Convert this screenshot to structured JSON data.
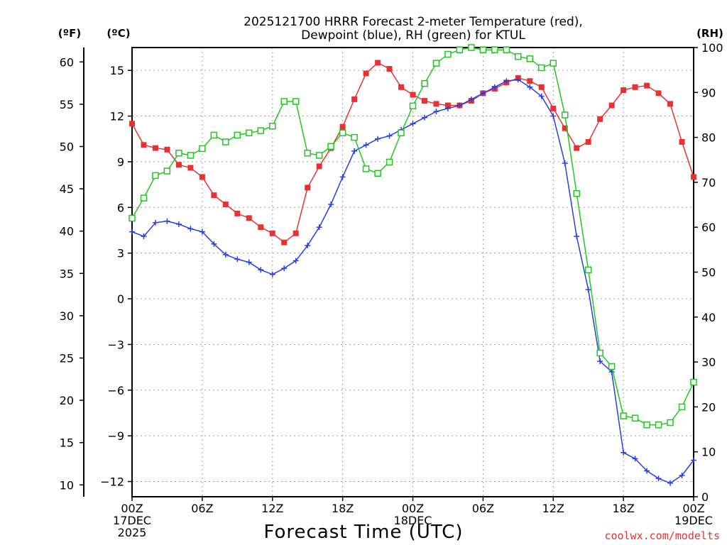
{
  "chart_data": {
    "type": "line",
    "title_line1": "2025121700 HRRR Forecast 2-meter Temperature (red),",
    "title_line2": "Dewpoint (blue), RH (green) for KTUL",
    "xlabel": "Forecast Time (UTC)",
    "left_outer_unit": "(ºF)",
    "left_inner_unit": "(ºC)",
    "right_unit": "(RH)",
    "credit": "coolwx.com/modelts",
    "x_hours_range": [
      0,
      48
    ],
    "celsius_range": [
      -13,
      16.5
    ],
    "fahrenheit_range": [
      8.6,
      61.7
    ],
    "rh_range": [
      0,
      100
    ],
    "x_ticks": [
      {
        "hour": 0,
        "lines": [
          "00Z",
          "17DEC",
          "2025"
        ]
      },
      {
        "hour": 6,
        "lines": [
          "06Z"
        ]
      },
      {
        "hour": 12,
        "lines": [
          "12Z"
        ]
      },
      {
        "hour": 18,
        "lines": [
          "18Z"
        ]
      },
      {
        "hour": 24,
        "lines": [
          "00Z",
          "18DEC"
        ]
      },
      {
        "hour": 30,
        "lines": [
          "06Z"
        ]
      },
      {
        "hour": 36,
        "lines": [
          "12Z"
        ]
      },
      {
        "hour": 42,
        "lines": [
          "18Z"
        ]
      },
      {
        "hour": 48,
        "lines": [
          "00Z",
          "19DEC"
        ]
      }
    ],
    "celsius_ticks": [
      "15",
      "12",
      "9",
      "6",
      "3",
      "0",
      "−3",
      "−6",
      "−9",
      "−12"
    ],
    "celsius_tick_values": [
      15,
      12,
      9,
      6,
      3,
      0,
      -3,
      -6,
      -9,
      -12
    ],
    "fahrenheit_ticks": [
      "60",
      "55",
      "50",
      "45",
      "40",
      "35",
      "30",
      "25",
      "20",
      "15",
      "10"
    ],
    "fahrenheit_tick_values": [
      60,
      55,
      50,
      45,
      40,
      35,
      30,
      25,
      20,
      15,
      10
    ],
    "rh_ticks": [
      "100",
      "90",
      "80",
      "70",
      "60",
      "50",
      "40",
      "30",
      "20",
      "10",
      "0"
    ],
    "rh_tick_values": [
      100,
      90,
      80,
      70,
      60,
      50,
      40,
      30,
      20,
      10,
      0
    ],
    "series": [
      {
        "name": "2-meter Temperature",
        "axis": "celsius",
        "color": "#e83232",
        "marker": "filled-square",
        "hours": [
          0,
          1,
          2,
          3,
          4,
          5,
          6,
          7,
          8,
          9,
          10,
          11,
          12,
          13,
          14,
          15,
          16,
          17,
          18,
          19,
          20,
          21,
          22,
          23,
          24,
          25,
          26,
          27,
          28,
          29,
          30,
          31,
          32,
          33,
          34,
          35,
          36,
          37,
          38,
          39,
          40,
          41,
          42,
          43,
          44,
          45,
          46,
          47,
          48
        ],
        "values": [
          11.5,
          10.1,
          9.9,
          9.8,
          8.8,
          8.6,
          8.0,
          6.8,
          6.2,
          5.6,
          5.3,
          4.7,
          4.3,
          3.7,
          4.3,
          7.3,
          8.7,
          9.9,
          11.3,
          13.1,
          14.8,
          15.5,
          15.1,
          13.9,
          13.4,
          13.0,
          12.8,
          12.7,
          12.7,
          13.0,
          13.5,
          13.8,
          14.2,
          14.5,
          14.3,
          13.9,
          12.5,
          11.2,
          9.9,
          10.3,
          11.8,
          12.7,
          13.7,
          13.9,
          14.0,
          13.5,
          12.8,
          10.3,
          8.0
        ]
      },
      {
        "name": "Dewpoint",
        "axis": "celsius",
        "color": "#2840e0",
        "marker": "plus",
        "hours": [
          0,
          1,
          2,
          3,
          4,
          5,
          6,
          7,
          8,
          9,
          10,
          11,
          12,
          13,
          14,
          15,
          16,
          17,
          18,
          19,
          20,
          21,
          22,
          23,
          24,
          25,
          26,
          27,
          28,
          29,
          30,
          31,
          32,
          33,
          34,
          35,
          36,
          37,
          38,
          39,
          40,
          41,
          42,
          43,
          44,
          45,
          46,
          47,
          48
        ],
        "values": [
          4.4,
          4.1,
          5.0,
          5.1,
          4.9,
          4.6,
          4.4,
          3.6,
          2.9,
          2.6,
          2.4,
          1.9,
          1.6,
          2.0,
          2.5,
          3.5,
          4.7,
          6.2,
          8.0,
          9.7,
          10.1,
          10.5,
          10.7,
          11.1,
          11.5,
          11.9,
          12.3,
          12.5,
          12.7,
          13.1,
          13.5,
          13.9,
          14.3,
          14.4,
          13.9,
          13.3,
          12.0,
          8.9,
          4.1,
          0.6,
          -4.1,
          -4.8,
          -10.1,
          -10.5,
          -11.3,
          -11.8,
          -12.1,
          -11.6,
          -10.6
        ]
      },
      {
        "name": "RH",
        "axis": "rh",
        "color": "#20c820",
        "marker": "open-square",
        "hours": [
          0,
          1,
          2,
          3,
          4,
          5,
          6,
          7,
          8,
          9,
          10,
          11,
          12,
          13,
          14,
          15,
          16,
          17,
          18,
          19,
          20,
          21,
          22,
          23,
          24,
          25,
          26,
          27,
          28,
          29,
          30,
          31,
          32,
          33,
          34,
          35,
          36,
          37,
          38,
          39,
          40,
          41,
          42,
          43,
          44,
          45,
          46,
          47,
          48
        ],
        "values": [
          62,
          66.5,
          71.5,
          72.5,
          76.5,
          76,
          77.5,
          80.5,
          79,
          80.5,
          81,
          81.5,
          82.5,
          88,
          88,
          76.5,
          76,
          78,
          81,
          80,
          73,
          72,
          74.5,
          81,
          87,
          92,
          96.5,
          98.5,
          99.5,
          100,
          99.5,
          99.5,
          99.5,
          98,
          97.5,
          95.5,
          96.5,
          85,
          67.5,
          50.5,
          32,
          29,
          18,
          17.5,
          16,
          16,
          16.5,
          20,
          25.5
        ]
      }
    ]
  }
}
